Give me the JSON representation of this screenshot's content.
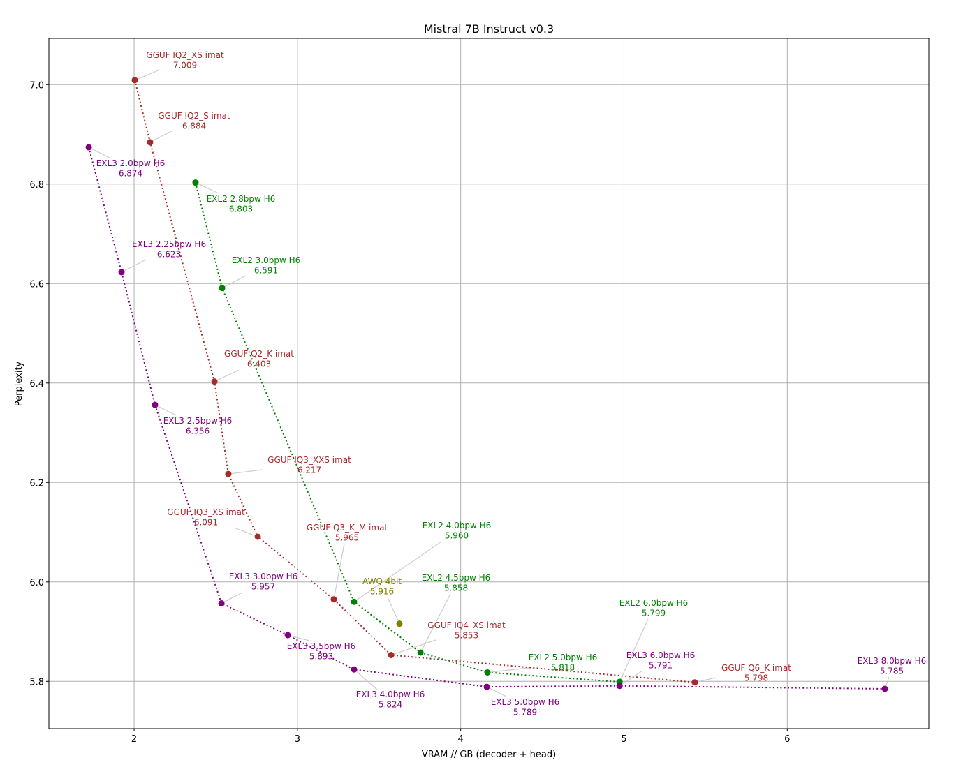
{
  "chart_data": {
    "type": "scatter",
    "title": "Mistral 7B Instruct v0.3",
    "xlabel": "VRAM // GB (decoder + head)",
    "ylabel": "Perplexity",
    "xlim": [
      1.478,
      6.867
    ],
    "ylim": [
      5.705,
      7.093
    ],
    "xticks": [
      "2",
      "3",
      "4",
      "5",
      "6"
    ],
    "yticks": [
      "5.8",
      "6.0",
      "6.2",
      "6.4",
      "6.6",
      "6.8",
      "7.0"
    ],
    "grid": true,
    "line_style": "dotted",
    "series": [
      {
        "color": "#a52a2a",
        "connected": true,
        "points": [
          {
            "label": "GGUF IQ2_XS imat",
            "x": 2.004,
            "y": 7.009,
            "value": "7.009"
          },
          {
            "label": "GGUF IQ2_S imat",
            "x": 2.098,
            "y": 6.884,
            "value": "6.884"
          },
          {
            "label": "GGUF Q2_K imat",
            "x": 2.492,
            "y": 6.403,
            "value": "6.403"
          },
          {
            "label": "GGUF IQ3_XXS imat",
            "x": 2.577,
            "y": 6.217,
            "value": "6.217"
          },
          {
            "label": "GGUF IQ3_XS imat",
            "x": 2.757,
            "y": 6.091,
            "value": "6.091"
          },
          {
            "label": "GGUF Q3_K_M imat",
            "x": 3.223,
            "y": 5.965,
            "value": "5.965"
          },
          {
            "label": "GGUF IQ4_XS imat",
            "x": 3.574,
            "y": 5.853,
            "value": "5.853"
          },
          {
            "label": "GGUF Q6_K imat",
            "x": 5.434,
            "y": 5.798,
            "value": "5.798"
          }
        ]
      },
      {
        "color": "#008000",
        "connected": true,
        "points": [
          {
            "label": "EXL2 2.8bpw H6",
            "x": 2.376,
            "y": 6.803,
            "value": "6.803"
          },
          {
            "label": "EXL2 3.0bpw H6",
            "x": 2.539,
            "y": 6.591,
            "value": "6.591"
          },
          {
            "label": "EXL2 4.0bpw H6",
            "x": 3.347,
            "y": 5.96,
            "value": "5.960"
          },
          {
            "label": "EXL2 4.5bpw H6",
            "x": 3.754,
            "y": 5.858,
            "value": "5.858"
          },
          {
            "label": "EXL2 5.0bpw H6",
            "x": 4.164,
            "y": 5.818,
            "value": "5.818"
          },
          {
            "label": "EXL2 6.0bpw H6",
            "x": 4.973,
            "y": 5.799,
            "value": "5.799"
          }
        ]
      },
      {
        "color": "#800080",
        "connected": true,
        "points": [
          {
            "label": "EXL3 2.0bpw H6",
            "x": 1.722,
            "y": 6.874,
            "value": "6.874"
          },
          {
            "label": "EXL3 2.25bpw H6",
            "x": 1.923,
            "y": 6.623,
            "value": "6.623"
          },
          {
            "label": "EXL3 2.5bpw H6",
            "x": 2.128,
            "y": 6.356,
            "value": "6.356"
          },
          {
            "label": "EXL3 3.0bpw H6",
            "x": 2.535,
            "y": 5.957,
            "value": "5.957"
          },
          {
            "label": "EXL3 3.5bpw H6",
            "x": 2.941,
            "y": 5.893,
            "value": "5.893"
          },
          {
            "label": "EXL3 4.0bpw H6",
            "x": 3.347,
            "y": 5.824,
            "value": "5.824"
          },
          {
            "label": "EXL3 5.0bpw H6",
            "x": 4.16,
            "y": 5.789,
            "value": "5.789"
          },
          {
            "label": "EXL3 6.0bpw H6",
            "x": 4.973,
            "y": 5.791,
            "value": "5.791"
          },
          {
            "label": "EXL3 8.0bpw H6",
            "x": 6.598,
            "y": 5.785,
            "value": "5.785"
          }
        ]
      },
      {
        "color": "#808000",
        "connected": false,
        "points": [
          {
            "label": "AWQ 4bit",
            "x": 3.625,
            "y": 5.916,
            "value": "5.916"
          }
        ]
      }
    ]
  }
}
